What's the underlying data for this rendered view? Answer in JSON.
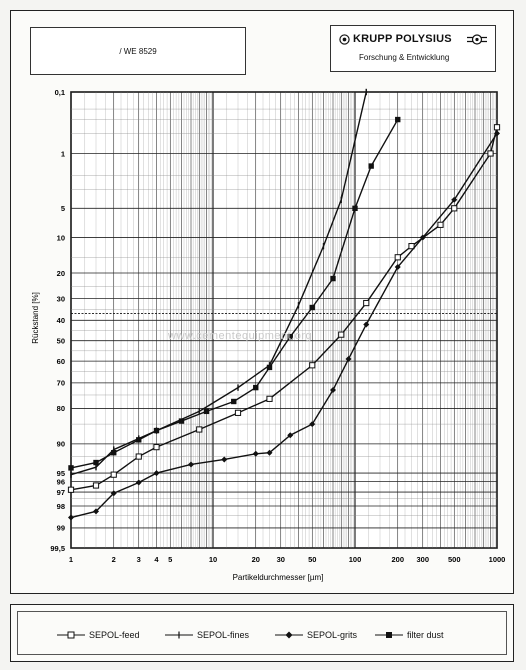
{
  "header": {
    "ref_label": "/ WE 8529",
    "brand_name": "KRUPP POLYSIUS",
    "brand_sub": "Forschung & Entwicklung"
  },
  "watermark": "www.cementequipment.org",
  "chart_data": {
    "type": "line",
    "xlabel": "Partikeldurchmesser [µm]",
    "ylabel": "Rückstand [%]",
    "xscale": "log",
    "xlim": [
      1,
      1000
    ],
    "x_ticks": [
      1,
      2,
      3,
      4,
      5,
      10,
      20,
      30,
      50,
      100,
      200,
      300,
      500,
      1000
    ],
    "x_tick_labels": [
      "1",
      "2",
      "3",
      "4",
      "5",
      "10",
      "20",
      "30",
      "50",
      "100",
      "200",
      "300",
      "500",
      "1000"
    ],
    "yscale": "probability (RRSB)",
    "ylim": [
      0.1,
      99.5
    ],
    "y_ticks": [
      0.1,
      1,
      5,
      10,
      20,
      30,
      40,
      50,
      60,
      70,
      80,
      90,
      95,
      96,
      97,
      98,
      99,
      99.5
    ],
    "y_tick_labels": [
      "0,1",
      "1",
      "5",
      "10",
      "20",
      "30",
      "40",
      "50",
      "60",
      "70",
      "80",
      "90",
      "95",
      "96",
      "97",
      "98",
      "99",
      "99,5"
    ],
    "reference_line": 36.8,
    "grid": true,
    "legend_position": "bottom",
    "series": [
      {
        "name": "SEPOL-feed",
        "marker": "open-square",
        "x": [
          1,
          1.5,
          2,
          3,
          4,
          8,
          15,
          25,
          50,
          80,
          120,
          200,
          250,
          400,
          500,
          900,
          1000
        ],
        "y": [
          96.8,
          96.4,
          95.2,
          92.5,
          90.7,
          86.5,
          81.5,
          76.5,
          62,
          47,
          32,
          15,
          12,
          7.5,
          5,
          1,
          0.4
        ]
      },
      {
        "name": "SEPOL-fines",
        "marker": "plus",
        "x": [
          1,
          1.5,
          2,
          3,
          4,
          8,
          15,
          25,
          40,
          60,
          80,
          120
        ],
        "y": [
          95.2,
          94.2,
          91.2,
          88.8,
          86.8,
          81,
          72,
          62,
          33,
          12,
          4,
          0.1
        ]
      },
      {
        "name": "SEPOL-grits",
        "marker": "filled-diamond",
        "x": [
          1,
          1.5,
          2,
          3,
          4,
          7,
          12,
          20,
          25,
          35,
          50,
          70,
          90,
          120,
          200,
          300,
          500,
          1000
        ],
        "y": [
          98.6,
          98.3,
          97.1,
          96.1,
          95,
          93.8,
          93,
          92,
          91.8,
          88,
          85,
          73,
          59,
          42,
          18,
          10,
          4,
          0.5
        ]
      },
      {
        "name": "filter dust",
        "marker": "filled-square",
        "x": [
          1,
          1.5,
          2,
          3,
          4,
          6,
          9,
          14,
          20,
          25,
          35,
          50,
          70,
          100,
          130,
          200
        ],
        "y": [
          94.3,
          93.5,
          91.8,
          89.1,
          86.8,
          84.1,
          81,
          77.5,
          72,
          63,
          48,
          34,
          22,
          5,
          1.5,
          0.3
        ]
      }
    ]
  }
}
